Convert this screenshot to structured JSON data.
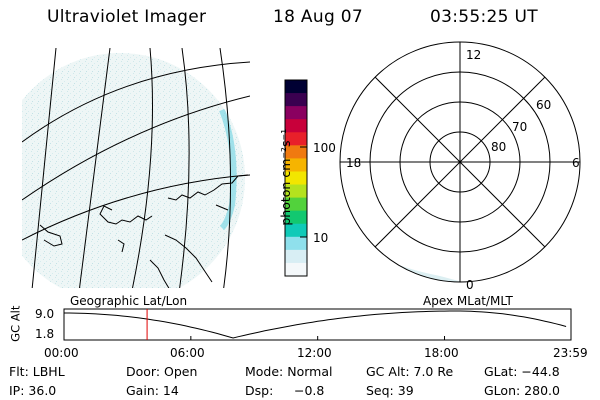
{
  "header": {
    "instrument": "Ultraviolet Imager",
    "date": "18 Aug 07",
    "time": "03:55:25 UT"
  },
  "colorbar": {
    "label": "photon cm⁻²s⁻¹",
    "ticks": [
      "100",
      "10"
    ],
    "scale": "log",
    "colors": [
      "#000033",
      "#3a0050",
      "#8a0060",
      "#c8003a",
      "#e8202a",
      "#f07a10",
      "#f6b400",
      "#f2e600",
      "#b4e21e",
      "#52d23c",
      "#12c870",
      "#10cab8",
      "#8fe0ec",
      "#d8eef4",
      "#f4f8fa"
    ]
  },
  "polar_plot": {
    "mlt_labels": {
      "top": "12",
      "left": "18",
      "right": "6",
      "bottom": "0"
    },
    "lat_labels": [
      "60",
      "70",
      "80"
    ]
  },
  "geo_map_label": "Geographic Lat/Lon",
  "polar_map_label": "Apex MLat/MLT",
  "altitude_plot": {
    "ylabel": "GC Alt",
    "yticks": [
      "9.0",
      "1.8"
    ],
    "xticks": [
      "00:00",
      "06:00",
      "12:00",
      "18:00",
      "23:59"
    ],
    "marker_time_hours": 3.93,
    "marker_color": "#e00000"
  },
  "info": {
    "flt": "Flt: LBHL",
    "ip": "IP: 36.0",
    "door": "Door: Open",
    "gain": "Gain: 14",
    "mode": "Mode: Normal",
    "dsp_label": "Dsp:",
    "dsp_value": "−0.8",
    "gcalt": "GC Alt: 7.0 Re",
    "seq": "Seq: 39",
    "glat": "GLat: −44.8",
    "glon": "GLon: 280.0"
  }
}
